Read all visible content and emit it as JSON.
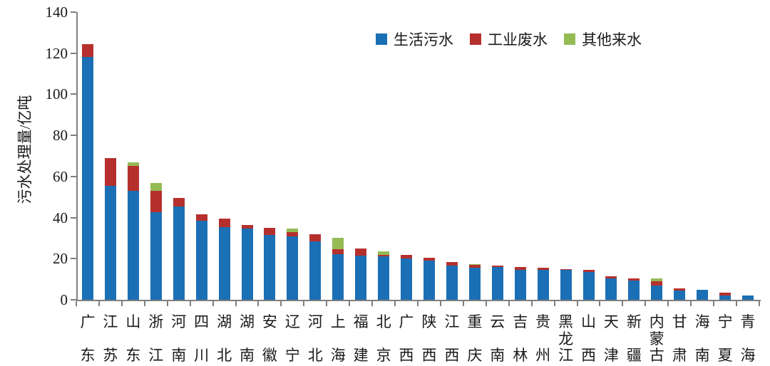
{
  "chart_data": {
    "type": "bar",
    "stacked": true,
    "title": "",
    "xlabel": "",
    "ylabel": "污水处理量/亿吨",
    "unit": "亿吨",
    "ylim": [
      0,
      140
    ],
    "yticks": [
      0,
      20,
      40,
      60,
      80,
      100,
      120,
      140
    ],
    "grid": false,
    "legend_position": "top-center",
    "categories": [
      "广东",
      "江苏",
      "山东",
      "浙江",
      "河南",
      "四川",
      "湖北",
      "湖南",
      "安徽",
      "辽宁",
      "河北",
      "上海",
      "福建",
      "北京",
      "广西",
      "陕西",
      "江西",
      "重庆",
      "云南",
      "吉林",
      "贵州",
      "黑龙江",
      "山西",
      "天津",
      "新疆",
      "内蒙古",
      "甘肃",
      "海南",
      "宁夏",
      "青海"
    ],
    "series": [
      {
        "name": "生活污水",
        "color": "#1b6fb5",
        "values": [
          118,
          55.5,
          53,
          42.5,
          45.5,
          38.5,
          35.5,
          34.5,
          31.5,
          31,
          28.5,
          22,
          21.5,
          21,
          20,
          19,
          16.5,
          15.5,
          16,
          14.5,
          14.5,
          14.5,
          13.5,
          10.5,
          9.5,
          7,
          4.5,
          5,
          2,
          2
        ]
      },
      {
        "name": "工业废水",
        "color": "#b5302d",
        "values": [
          6.5,
          13.5,
          12,
          10.5,
          4,
          3,
          4,
          2,
          3.5,
          2,
          3.5,
          2.5,
          3.5,
          1,
          2,
          1.5,
          2,
          1.5,
          0.5,
          1.5,
          1,
          0.5,
          1,
          1,
          1,
          2,
          1,
          0,
          1.5,
          0
        ]
      },
      {
        "name": "其他来水",
        "color": "#95bb55",
        "values": [
          0,
          0,
          2,
          4,
          0,
          0,
          0,
          0,
          0,
          1.5,
          0,
          5.5,
          0,
          1.5,
          0,
          0,
          0,
          0.5,
          0,
          0,
          0,
          0,
          0,
          0,
          0,
          1.5,
          0,
          0,
          0,
          0
        ]
      }
    ]
  },
  "colors": {
    "axis": "#7f7f7f",
    "text": "#1a1a1a",
    "background": "#ffffff"
  }
}
